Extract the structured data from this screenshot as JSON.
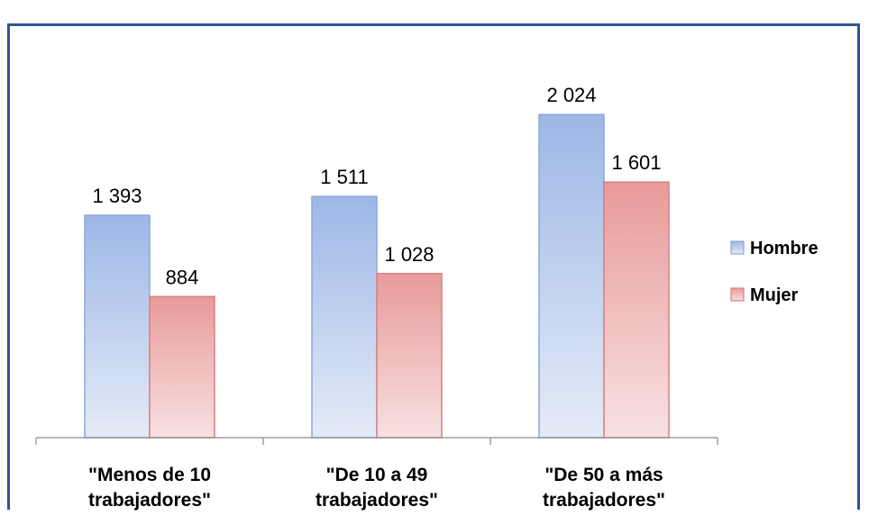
{
  "chart_data": {
    "type": "bar",
    "title": "(… … … …)",
    "categories": [
      [
        "\"Menos de 10",
        "trabajadores\""
      ],
      [
        "\"De 10 a 49",
        "trabajadores\""
      ],
      [
        "\"De 50 a más",
        "trabajadores\""
      ]
    ],
    "series": [
      {
        "name": "Hombre",
        "values": [
          1393,
          1511,
          2024
        ],
        "labels": [
          "1 393",
          "1 511",
          "2 024"
        ],
        "color_top": "#9db7e6",
        "color_bottom": "#e4ebf7",
        "stroke": "#8aa8da"
      },
      {
        "name": "Mujer",
        "values": [
          884,
          1028,
          1601
        ],
        "labels": [
          "884",
          "1 028",
          "1 601"
        ],
        "color_top": "#e89a9a",
        "color_bottom": "#f8e1e1",
        "stroke": "#d98080"
      }
    ],
    "ylim": [
      0,
      2200
    ],
    "grid": false,
    "legend": "right"
  }
}
